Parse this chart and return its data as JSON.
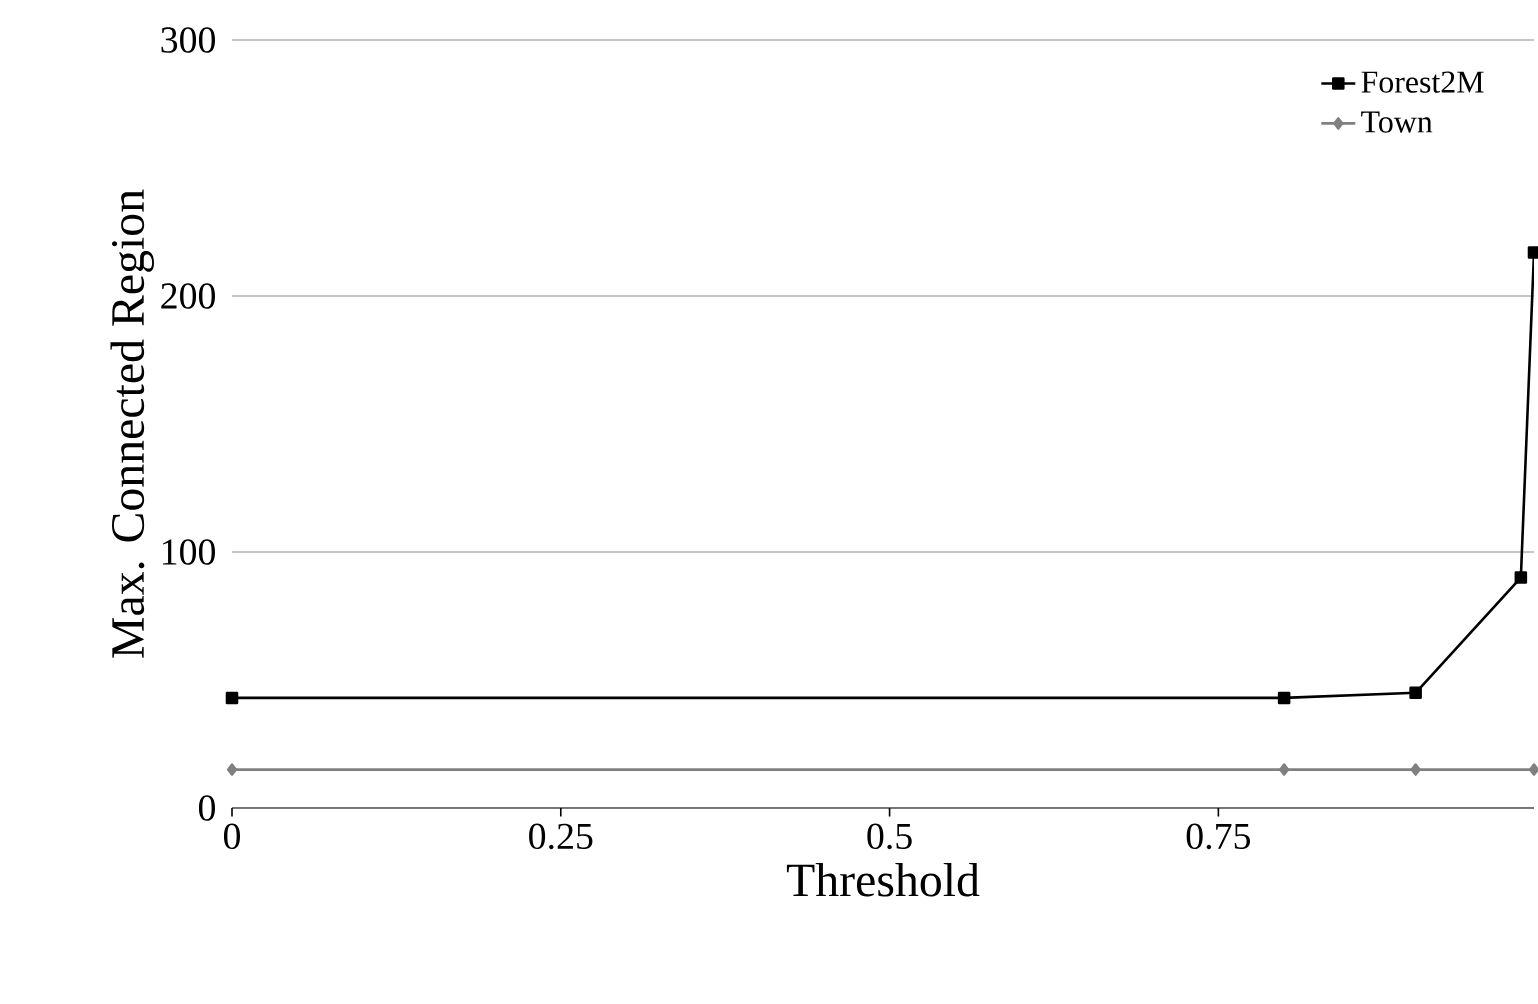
{
  "chart_data": {
    "type": "line",
    "xlabel": "Threshold",
    "ylabel": "Max. Connected Region",
    "xlim": [
      0,
      0.99
    ],
    "xticks": [
      0,
      0.25,
      0.5,
      0.75
    ],
    "ylim": [
      0,
      300
    ],
    "yticks": [
      0,
      100,
      200,
      300
    ],
    "grid": "y",
    "legend": "top right",
    "line_style": "solid",
    "series": [
      {
        "name": "Forest2M",
        "color": "#000000",
        "marker": "square",
        "x": [
          0,
          0.8,
          0.9,
          0.98,
          0.99
        ],
        "values": [
          43,
          43,
          45,
          90,
          217
        ]
      },
      {
        "name": "Town",
        "color": "#808080",
        "marker": "diamond",
        "x": [
          0,
          0.8,
          0.9,
          0.99
        ],
        "values": [
          15,
          15,
          15,
          15
        ]
      }
    ]
  }
}
